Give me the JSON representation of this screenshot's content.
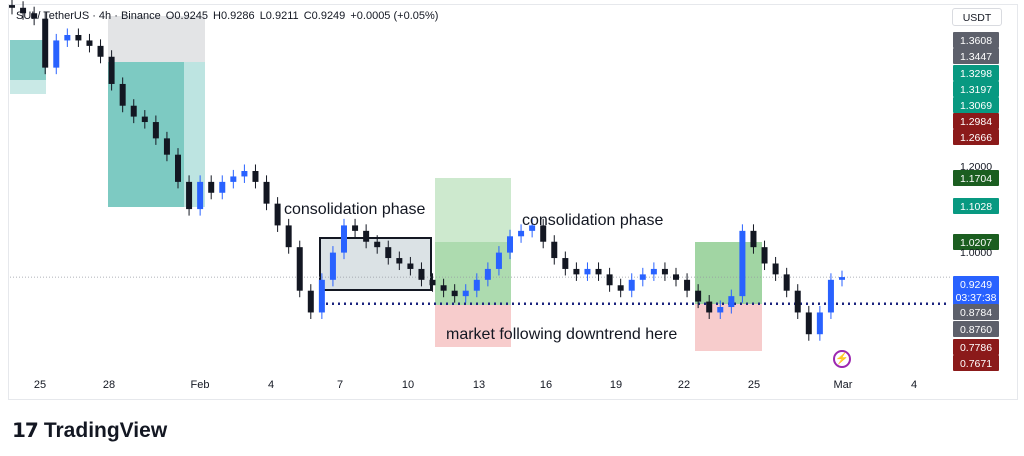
{
  "header": {
    "symbol": "SUI / TetherUS · 4h · Binance",
    "open": "O0.9245",
    "high": "H0.9286",
    "low": "L0.9211",
    "close": "C0.9249",
    "change": "+0.0005 (+0.05%)"
  },
  "currency": "USDT",
  "annotations": {
    "consolidation_1": "consolidation phase",
    "consolidation_2": "consolidation phase",
    "downtrend": "market following downtrend here"
  },
  "price_labels": [
    {
      "text": "1.3608",
      "bg": "#5d606b",
      "fg": "#ffffff"
    },
    {
      "text": "1.3447",
      "bg": "#5d606b",
      "fg": "#ffffff"
    },
    {
      "text": "1.3298",
      "bg": "#089981",
      "fg": "#ffffff"
    },
    {
      "text": "1.3197",
      "bg": "#089981",
      "fg": "#ffffff"
    },
    {
      "text": "1.3069",
      "bg": "#089981",
      "fg": "#ffffff"
    },
    {
      "text": "1.2984",
      "bg": "#8b1a1a",
      "fg": "#ffffff"
    },
    {
      "text": "1.2666",
      "bg": "#8b1a1a",
      "fg": "#ffffff"
    },
    {
      "text": "1.2000",
      "bg": "",
      "fg": "#131722"
    },
    {
      "text": "1.1704",
      "bg": "#1b5e20",
      "fg": "#ffffff"
    },
    {
      "text": "1.1028",
      "bg": "#089981",
      "fg": "#ffffff"
    },
    {
      "text": "1.0207",
      "bg": "#1b5e20",
      "fg": "#ffffff"
    },
    {
      "text": "1.0000",
      "bg": "",
      "fg": "#131722"
    },
    {
      "text": "0.9249",
      "bg": "#2962ff",
      "fg": "#ffffff"
    },
    {
      "text": "03:37:38",
      "bg": "#2962ff",
      "fg": "#ffffff"
    },
    {
      "text": "0.8784",
      "bg": "#5d606b",
      "fg": "#ffffff"
    },
    {
      "text": "0.8760",
      "bg": "#5d606b",
      "fg": "#ffffff"
    },
    {
      "text": "0.7786",
      "bg": "#8b1a1a",
      "fg": "#ffffff"
    },
    {
      "text": "0.7671",
      "bg": "#8b1a1a",
      "fg": "#ffffff"
    }
  ],
  "time_labels": [
    "25",
    "28",
    "Feb",
    "4",
    "7",
    "10",
    "13",
    "16",
    "19",
    "22",
    "25",
    "Mar",
    "4"
  ],
  "colors": {
    "up": "#2962ff",
    "down": "#131722",
    "target_zone": "#26a69a",
    "profit_zone": "#81c784",
    "stop_zone": "#ef9a9a",
    "support_line": "#1a237e"
  },
  "chart_data": {
    "type": "candlestick",
    "symbol": "SUI / TetherUS",
    "interval": "4h",
    "exchange": "Binance",
    "last_price": 0.9249,
    "x_ticks": [
      "25",
      "28",
      "Feb",
      "4",
      "7",
      "10",
      "13",
      "16",
      "19",
      "22",
      "25",
      "Mar",
      "4"
    ],
    "close_path": [
      1.42,
      1.41,
      1.4,
      1.31,
      1.36,
      1.37,
      1.36,
      1.35,
      1.33,
      1.28,
      1.24,
      1.22,
      1.21,
      1.18,
      1.15,
      1.1,
      1.05,
      1.1,
      1.08,
      1.1,
      1.11,
      1.12,
      1.1,
      1.06,
      1.02,
      0.98,
      0.9,
      0.86,
      0.92,
      0.97,
      1.02,
      1.01,
      0.99,
      0.98,
      0.96,
      0.95,
      0.94,
      0.92,
      0.91,
      0.9,
      0.89,
      0.9,
      0.92,
      0.94,
      0.97,
      1.0,
      1.01,
      1.02,
      0.99,
      0.96,
      0.94,
      0.93,
      0.94,
      0.93,
      0.91,
      0.9,
      0.92,
      0.93,
      0.94,
      0.93,
      0.92,
      0.9,
      0.88,
      0.86,
      0.87,
      0.89,
      1.01,
      0.98,
      0.95,
      0.93,
      0.9,
      0.86,
      0.82,
      0.86,
      0.92,
      0.925
    ],
    "support_level": 0.876
  }
}
